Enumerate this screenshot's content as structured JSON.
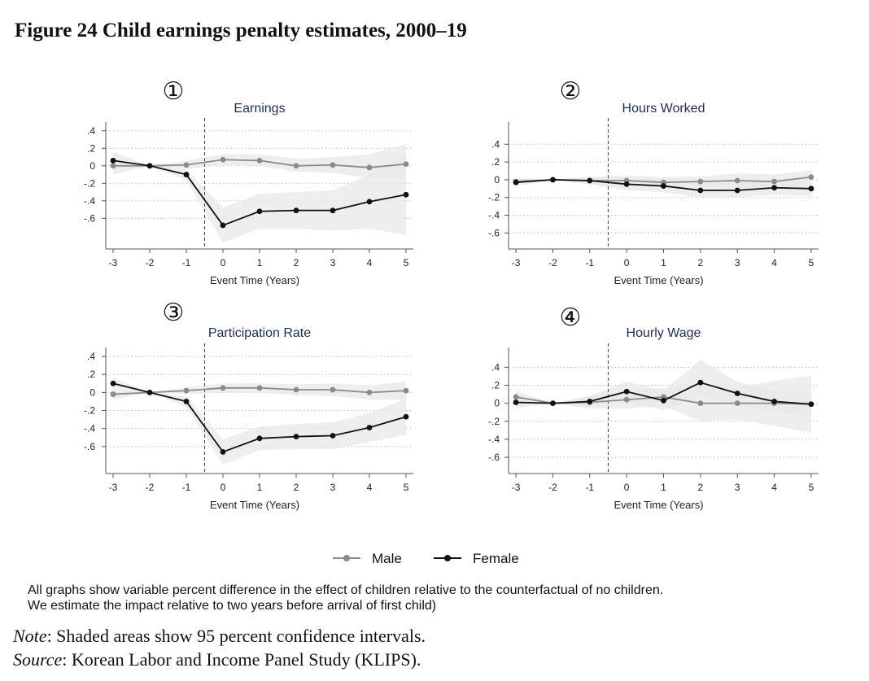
{
  "title": "Figure 24 Child earnings penalty estimates, 2000–19",
  "legend": {
    "male": "Male",
    "female": "Female"
  },
  "colors": {
    "male": "#8a8a8a",
    "female": "#111111",
    "ci": "#e8e8e8",
    "title": "#1f2d4d"
  },
  "caption": {
    "line1": "All graphs show variable percent difference in the effect of children relative to the counterfactual of no children.",
    "line2": "We estimate the impact relative to two years before arrival of first child)"
  },
  "note": {
    "label": "Note",
    "text": ": Shaded areas show 95 percent confidence intervals."
  },
  "source": {
    "label": "Source",
    "text": ": Korean Labor and Income Panel Study (KLIPS)."
  },
  "chart_data": [
    {
      "type": "line",
      "marker": "①",
      "title": "Earnings",
      "xlabel": "Event Time (Years)",
      "ylabel": "",
      "x": [
        -3,
        -2,
        -1,
        0,
        1,
        2,
        3,
        4,
        5
      ],
      "xticks": [
        "-3",
        "-2",
        "-1",
        "0",
        "1",
        "2",
        "3",
        "4",
        "5"
      ],
      "yticks": [
        ".4",
        ".2",
        "0",
        "-.2",
        "-.4",
        "-.6"
      ],
      "ytick_values": [
        0.4,
        0.2,
        0,
        -0.2,
        -0.4,
        -0.6
      ],
      "ylim": [
        -0.95,
        0.5
      ],
      "event_line_x": -0.5,
      "series": [
        {
          "name": "Male",
          "values": [
            0.0,
            0.0,
            0.01,
            0.07,
            0.06,
            0.0,
            0.01,
            -0.02,
            0.02
          ],
          "ci_lower": [
            -0.1,
            0.0,
            -0.04,
            0.01,
            0.0,
            -0.07,
            -0.08,
            -0.14,
            -0.12
          ],
          "ci_upper": [
            0.1,
            0.0,
            0.06,
            0.13,
            0.13,
            0.08,
            0.1,
            0.13,
            0.25
          ]
        },
        {
          "name": "Female",
          "values": [
            0.06,
            0.0,
            -0.1,
            -0.68,
            -0.52,
            -0.51,
            -0.51,
            -0.41,
            -0.33
          ],
          "ci_lower": [
            -0.04,
            0.0,
            -0.16,
            -0.88,
            -0.72,
            -0.72,
            -0.74,
            -0.72,
            -0.79
          ],
          "ci_upper": [
            0.16,
            0.0,
            -0.04,
            -0.48,
            -0.32,
            -0.3,
            -0.28,
            -0.1,
            0.13
          ]
        }
      ]
    },
    {
      "type": "line",
      "marker": "②",
      "title": "Hours Worked",
      "xlabel": "Event Time (Years)",
      "ylabel": "",
      "x": [
        -3,
        -2,
        -1,
        0,
        1,
        2,
        3,
        4,
        5
      ],
      "xticks": [
        "-3",
        "-2",
        "-1",
        "0",
        "1",
        "2",
        "3",
        "4",
        "5"
      ],
      "yticks": [
        ".4",
        ".2",
        "0",
        "-.2",
        "-.4",
        "-.6"
      ],
      "ytick_values": [
        0.4,
        0.2,
        0,
        -0.2,
        -0.4,
        -0.6
      ],
      "ylim": [
        -0.78,
        0.65
      ],
      "event_line_x": -0.5,
      "series": [
        {
          "name": "Male",
          "values": [
            -0.02,
            0.0,
            -0.01,
            -0.01,
            -0.03,
            -0.02,
            -0.01,
            -0.02,
            0.03
          ],
          "ci_lower": [
            -0.06,
            0.0,
            -0.05,
            -0.07,
            -0.09,
            -0.08,
            -0.09,
            -0.1,
            -0.05
          ],
          "ci_upper": [
            0.02,
            0.0,
            0.03,
            0.05,
            0.03,
            0.04,
            0.07,
            0.06,
            0.11
          ]
        },
        {
          "name": "Female",
          "values": [
            -0.03,
            0.0,
            -0.01,
            -0.05,
            -0.07,
            -0.12,
            -0.12,
            -0.09,
            -0.1
          ],
          "ci_lower": [
            -0.07,
            0.0,
            -0.05,
            -0.12,
            -0.14,
            -0.2,
            -0.2,
            -0.17,
            -0.19
          ],
          "ci_upper": [
            0.01,
            0.0,
            0.03,
            0.02,
            0.0,
            -0.04,
            -0.04,
            -0.01,
            -0.01
          ]
        }
      ]
    },
    {
      "type": "line",
      "marker": "③",
      "title": "Participation Rate",
      "xlabel": "Event Time (Years)",
      "ylabel": "",
      "x": [
        -3,
        -2,
        -1,
        0,
        1,
        2,
        3,
        4,
        5
      ],
      "xticks": [
        "-3",
        "-2",
        "-1",
        "0",
        "1",
        "2",
        "3",
        "4",
        "5"
      ],
      "yticks": [
        ".4",
        ".2",
        "0",
        "-.2",
        "-.4",
        "-.6"
      ],
      "ytick_values": [
        0.4,
        0.2,
        0,
        -0.2,
        -0.4,
        -0.6
      ],
      "ylim": [
        -0.9,
        0.5
      ],
      "event_line_x": -0.5,
      "series": [
        {
          "name": "Male",
          "values": [
            -0.02,
            0.0,
            0.02,
            0.05,
            0.05,
            0.03,
            0.03,
            0.0,
            0.02
          ],
          "ci_lower": [
            -0.08,
            0.0,
            -0.02,
            0.0,
            0.0,
            -0.03,
            -0.04,
            -0.08,
            -0.08
          ],
          "ci_upper": [
            0.04,
            0.0,
            0.06,
            0.1,
            0.1,
            0.09,
            0.1,
            0.08,
            0.12
          ]
        },
        {
          "name": "Female",
          "values": [
            0.1,
            0.0,
            -0.1,
            -0.66,
            -0.51,
            -0.49,
            -0.48,
            -0.39,
            -0.27
          ],
          "ci_lower": [
            0.04,
            0.0,
            -0.16,
            -0.8,
            -0.64,
            -0.63,
            -0.63,
            -0.55,
            -0.47
          ],
          "ci_upper": [
            0.16,
            0.0,
            -0.04,
            -0.52,
            -0.38,
            -0.35,
            -0.33,
            -0.23,
            -0.07
          ]
        }
      ]
    },
    {
      "type": "line",
      "marker": "④",
      "title": "Hourly Wage",
      "xlabel": "Event Time (Years)",
      "ylabel": "",
      "x": [
        -3,
        -2,
        -1,
        0,
        1,
        2,
        3,
        4,
        5
      ],
      "xticks": [
        "-3",
        "-2",
        "-1",
        "0",
        "1",
        "2",
        "3",
        "4",
        "5"
      ],
      "yticks": [
        ".4",
        ".2",
        "0",
        "-.2",
        "-.4",
        "-.6"
      ],
      "ytick_values": [
        0.4,
        0.2,
        0,
        -0.2,
        -0.4,
        -0.6
      ],
      "ylim": [
        -0.78,
        0.62
      ],
      "event_line_x": -0.5,
      "series": [
        {
          "name": "Male",
          "values": [
            0.07,
            0.0,
            0.01,
            0.04,
            0.07,
            0.0,
            0.0,
            0.0,
            -0.01
          ],
          "ci_lower": [
            0.0,
            0.0,
            -0.06,
            -0.06,
            -0.03,
            -0.2,
            -0.18,
            -0.25,
            -0.33
          ],
          "ci_upper": [
            0.14,
            0.0,
            0.08,
            0.14,
            0.17,
            0.2,
            0.18,
            0.25,
            0.31
          ]
        },
        {
          "name": "Female",
          "values": [
            0.01,
            0.0,
            0.02,
            0.13,
            0.03,
            0.23,
            0.11,
            0.02,
            -0.01
          ],
          "ci_lower": [
            -0.05,
            0.0,
            -0.04,
            0.02,
            -0.08,
            0.08,
            -0.02,
            -0.1,
            -0.15
          ],
          "ci_upper": [
            0.07,
            0.0,
            0.08,
            0.24,
            0.14,
            0.48,
            0.24,
            0.14,
            0.13
          ]
        }
      ]
    }
  ]
}
